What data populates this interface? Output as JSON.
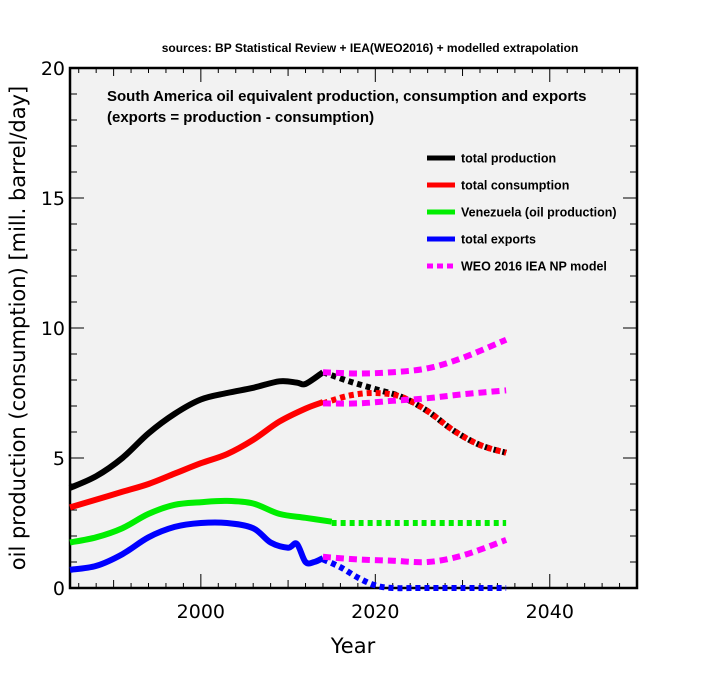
{
  "chart_data": {
    "type": "line",
    "source_title": "sources: BP Statistical Review + IEA(WEO2016) + modelled extrapolation",
    "title_line1": "South America oil equivalent production, consumption and exports",
    "title_line2": "(exports = production - consumption)",
    "xlabel": "Year",
    "ylabel": "oil production (consumption) [mill. barrel/day]",
    "xlim": [
      1985,
      2050
    ],
    "ylim": [
      0,
      20
    ],
    "xticks": [
      {
        "value": 2000,
        "label": "2000"
      },
      {
        "value": 2020,
        "label": "2020"
      },
      {
        "value": 2040,
        "label": "2040"
      }
    ],
    "yticks": [
      {
        "value": 0,
        "label": "0"
      },
      {
        "value": 5,
        "label": "5"
      },
      {
        "value": 10,
        "label": "10"
      },
      {
        "value": 15,
        "label": "15"
      },
      {
        "value": 20,
        "label": "20"
      }
    ],
    "legend": [
      {
        "label": "total production",
        "color": "#000000",
        "style": "solid"
      },
      {
        "label": "total consumption",
        "color": "#ff0000",
        "style": "solid"
      },
      {
        "label": "Venezuela (oil production)",
        "color": "#00ee00",
        "style": "solid"
      },
      {
        "label": "total exports",
        "color": "#0000ff",
        "style": "solid"
      },
      {
        "label": "WEO 2016 IEA NP model",
        "color": "#ff00ff",
        "style": "dashed"
      }
    ],
    "series": [
      {
        "name": "total production",
        "color": "#000000",
        "style": "solid",
        "x": [
          1985,
          1988,
          1991,
          1994,
          1997,
          2000,
          2003,
          2006,
          2009,
          2011,
          2012,
          2014
        ],
        "y": [
          3.85,
          4.3,
          5.0,
          5.95,
          6.7,
          7.25,
          7.5,
          7.7,
          7.95,
          7.9,
          7.85,
          8.3
        ]
      },
      {
        "name": "total production extrapolation",
        "color": "#000000",
        "style": "dotted",
        "x": [
          2014,
          2017,
          2020,
          2023,
          2026,
          2029,
          2032,
          2035
        ],
        "y": [
          8.3,
          7.95,
          7.65,
          7.35,
          6.8,
          6.05,
          5.5,
          5.2
        ]
      },
      {
        "name": "total consumption",
        "color": "#ff0000",
        "style": "solid",
        "x": [
          1985,
          1988,
          1991,
          1994,
          1997,
          2000,
          2003,
          2006,
          2009,
          2012,
          2014
        ],
        "y": [
          3.1,
          3.4,
          3.7,
          4.0,
          4.4,
          4.8,
          5.15,
          5.7,
          6.4,
          6.9,
          7.15
        ]
      },
      {
        "name": "total consumption extrapolation",
        "color": "#ff0000",
        "style": "dotted",
        "x": [
          2014,
          2017,
          2020,
          2023,
          2026,
          2029,
          2032,
          2035
        ],
        "y": [
          7.1,
          7.4,
          7.5,
          7.35,
          6.8,
          6.05,
          5.5,
          5.2
        ]
      },
      {
        "name": "Venezuela (oil production)",
        "color": "#00ee00",
        "style": "solid",
        "x": [
          1985,
          1988,
          1991,
          1994,
          1997,
          2000,
          2003,
          2006,
          2009,
          2012,
          2015
        ],
        "y": [
          1.75,
          1.95,
          2.3,
          2.85,
          3.2,
          3.3,
          3.35,
          3.25,
          2.85,
          2.7,
          2.55
        ]
      },
      {
        "name": "Venezuela extrapolation",
        "color": "#00ee00",
        "style": "dotted",
        "x": [
          2015,
          2025,
          2035
        ],
        "y": [
          2.5,
          2.5,
          2.5
        ]
      },
      {
        "name": "total exports",
        "color": "#0000ff",
        "style": "solid",
        "x": [
          1985,
          1988,
          1991,
          1994,
          1997,
          2000,
          2003,
          2006,
          2008,
          2010,
          2011,
          2012,
          2013,
          2014
        ],
        "y": [
          0.7,
          0.85,
          1.3,
          1.95,
          2.35,
          2.5,
          2.5,
          2.3,
          1.75,
          1.55,
          1.7,
          1.0,
          1.0,
          1.15
        ]
      },
      {
        "name": "total exports extrapolation",
        "color": "#0000ff",
        "style": "dotted",
        "x": [
          2014,
          2016,
          2018,
          2020,
          2022,
          2025,
          2030,
          2035
        ],
        "y": [
          1.1,
          0.8,
          0.4,
          0.1,
          0.0,
          0.0,
          0.0,
          0.0
        ]
      },
      {
        "name": "WEO 2016 IEA NP model (upper)",
        "color": "#ff00ff",
        "style": "dashed",
        "x": [
          2014,
          2018,
          2022,
          2026,
          2030,
          2035
        ],
        "y": [
          8.3,
          8.25,
          8.3,
          8.45,
          8.85,
          9.55
        ]
      },
      {
        "name": "WEO 2016 IEA NP model (middle)",
        "color": "#ff00ff",
        "style": "dashed",
        "x": [
          2014,
          2018,
          2022,
          2026,
          2030,
          2035
        ],
        "y": [
          7.1,
          7.1,
          7.2,
          7.3,
          7.45,
          7.6
        ]
      },
      {
        "name": "WEO 2016 IEA NP model (lower)",
        "color": "#ff00ff",
        "style": "dashed",
        "x": [
          2014,
          2018,
          2022,
          2026,
          2030,
          2035
        ],
        "y": [
          1.2,
          1.1,
          1.05,
          1.0,
          1.25,
          1.85
        ]
      }
    ]
  }
}
